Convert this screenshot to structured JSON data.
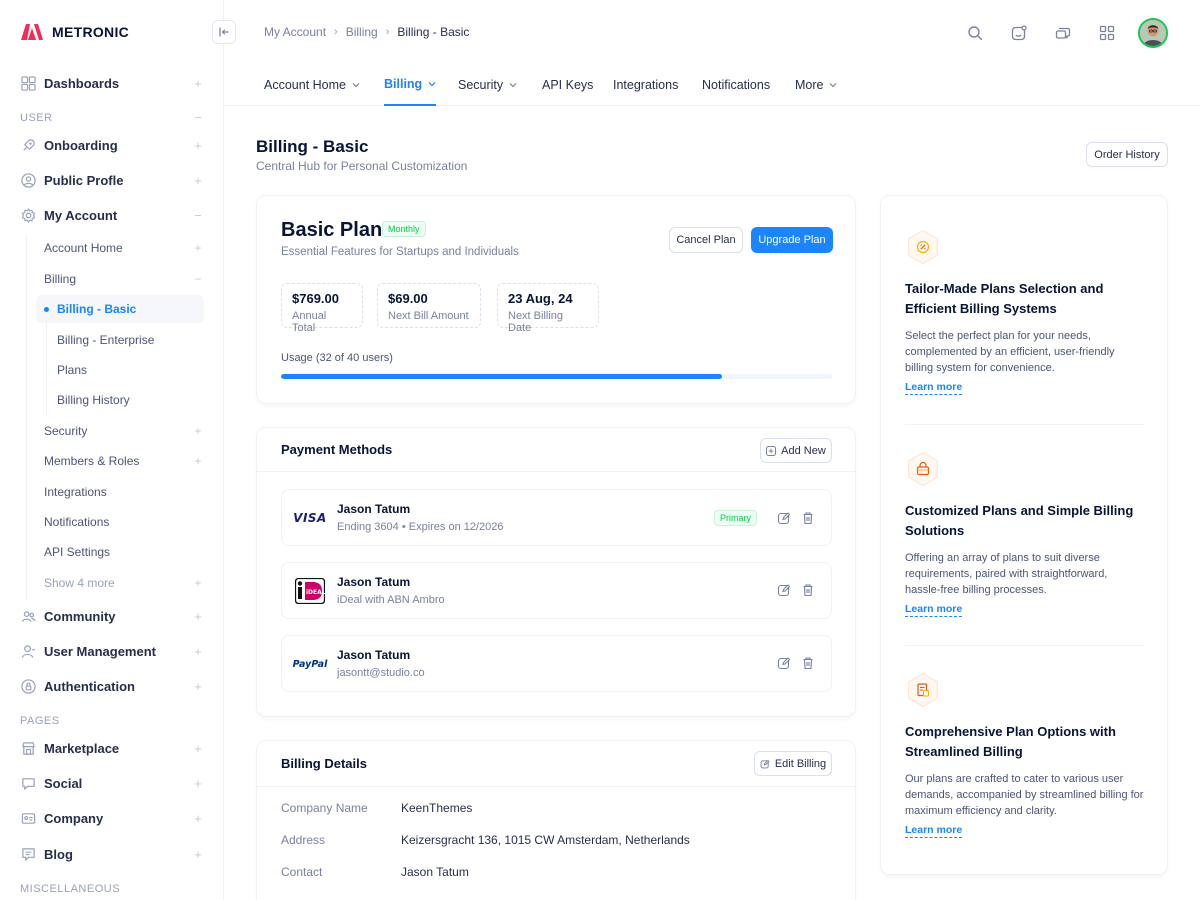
{
  "brand": {
    "name": "METRONIC",
    "accent": "#f8285a"
  },
  "sidebar": {
    "sections": {
      "user": "USER",
      "pages": "PAGES",
      "misc": "MISCELLANEOUS"
    },
    "items": {
      "dashboards": "Dashboards",
      "onboarding": "Onboarding",
      "public_profile": "Public Profle",
      "my_account": "My Account",
      "community": "Community",
      "user_management": "User Management",
      "authentication": "Authentication",
      "marketplace": "Marketplace",
      "social": "Social",
      "company": "Company",
      "blog": "Blog"
    },
    "my_account_sub": {
      "account_home": "Account Home",
      "billing": "Billing",
      "security": "Security",
      "members_roles": "Members & Roles",
      "integrations": "Integrations",
      "notifications": "Notifications",
      "api_settings": "API Settings",
      "show_more": "Show 4 more"
    },
    "billing_sub": {
      "basic": "Billing - Basic",
      "enterprise": "Billing - Enterprise",
      "plans": "Plans",
      "history": "Billing History"
    }
  },
  "breadcrumb": {
    "a": "My Account",
    "b": "Billing",
    "c": "Billing - Basic"
  },
  "tabs": {
    "account_home": "Account Home",
    "billing": "Billing",
    "security": "Security",
    "api_keys": "API Keys",
    "integrations": "Integrations",
    "notifications": "Notifications",
    "more": "More"
  },
  "page": {
    "title": "Billing - Basic",
    "subtitle": "Central Hub for Personal Customization",
    "order_history": "Order History"
  },
  "plan": {
    "name": "Basic Plan",
    "badge": "Monthly",
    "description": "Essential Features for Startups and Individuals",
    "cancel": "Cancel Plan",
    "upgrade": "Upgrade Plan",
    "stats": [
      {
        "value": "$769.00",
        "label": "Annual Total"
      },
      {
        "value": "$69.00",
        "label": "Next Bill Amount"
      },
      {
        "value": "23 Aug, 24",
        "label": "Next Billing Date"
      }
    ],
    "usage_label": "Usage (32 of 40 users)",
    "usage_fraction": 0.8
  },
  "payment": {
    "title": "Payment Methods",
    "add_new": "Add New",
    "methods": [
      {
        "logo": "VISA",
        "name": "Jason Tatum",
        "desc": "Ending 3604 • Expires on 12/2026",
        "primary": "Primary"
      },
      {
        "logo": "iDEAL",
        "name": "Jason Tatum",
        "desc": "iDeal with ABN Ambro"
      },
      {
        "logo": "PayPal",
        "name": "Jason Tatum",
        "desc": "jasontt@studio.co"
      }
    ]
  },
  "billing_details": {
    "title": "Billing Details",
    "edit": "Edit Billing",
    "rows": [
      {
        "key": "Company Name",
        "value": "KeenThemes"
      },
      {
        "key": "Address",
        "value": "Keizersgracht 136, 1015 CW Amsterdam, Netherlands"
      },
      {
        "key": "Contact",
        "value": "Jason Tatum"
      }
    ]
  },
  "info": [
    {
      "icon": "badge-percent-icon",
      "title": "Tailor-Made Plans Selection and Efficient Billing Systems",
      "desc": "Select the perfect plan for your needs, complemented by an efficient, user-friendly billing system for convenience.",
      "link": "Learn more"
    },
    {
      "icon": "shopping-bag-icon",
      "title": "Customized Plans and Simple Billing Solutions",
      "desc": "Offering an array of plans to suit diverse requirements, paired with straightforward, hassle-free billing processes.",
      "link": "Learn more"
    },
    {
      "icon": "document-icon",
      "title": "Comprehensive Plan Options with Streamlined Billing",
      "desc": "Our plans are crafted to cater to various user demands, accompanied by streamlined billing for maximum efficiency and clarity.",
      "link": "Learn more"
    }
  ]
}
